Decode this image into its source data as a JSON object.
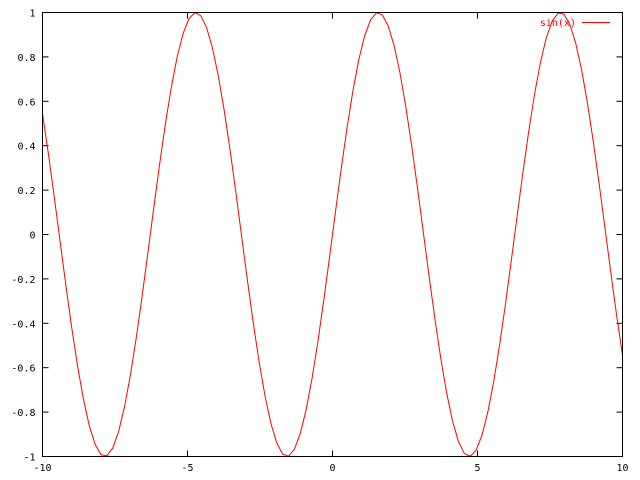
{
  "chart_data": {
    "type": "line",
    "title": "",
    "xlabel": "",
    "ylabel": "",
    "xlim": [
      -10,
      10
    ],
    "ylim": [
      -1,
      1
    ],
    "grid": false,
    "legend_placement": "top-right",
    "x_ticks": [
      -10,
      -5,
      0,
      5,
      10
    ],
    "x_tick_labels": [
      "-10",
      "-5",
      "0",
      "5",
      "10"
    ],
    "y_ticks": [
      -1,
      -0.8,
      -0.6,
      -0.4,
      -0.2,
      0,
      0.2,
      0.4,
      0.6,
      0.8,
      1
    ],
    "y_tick_labels": [
      "-1",
      "-0.8",
      "-0.6",
      "-0.4",
      "-0.2",
      "0",
      "0.2",
      "0.4",
      "0.6",
      "0.8",
      "1"
    ],
    "series": [
      {
        "name": "sin(x)",
        "function": "sin(x)",
        "color": "#ff0000",
        "samples": 100
      }
    ]
  }
}
